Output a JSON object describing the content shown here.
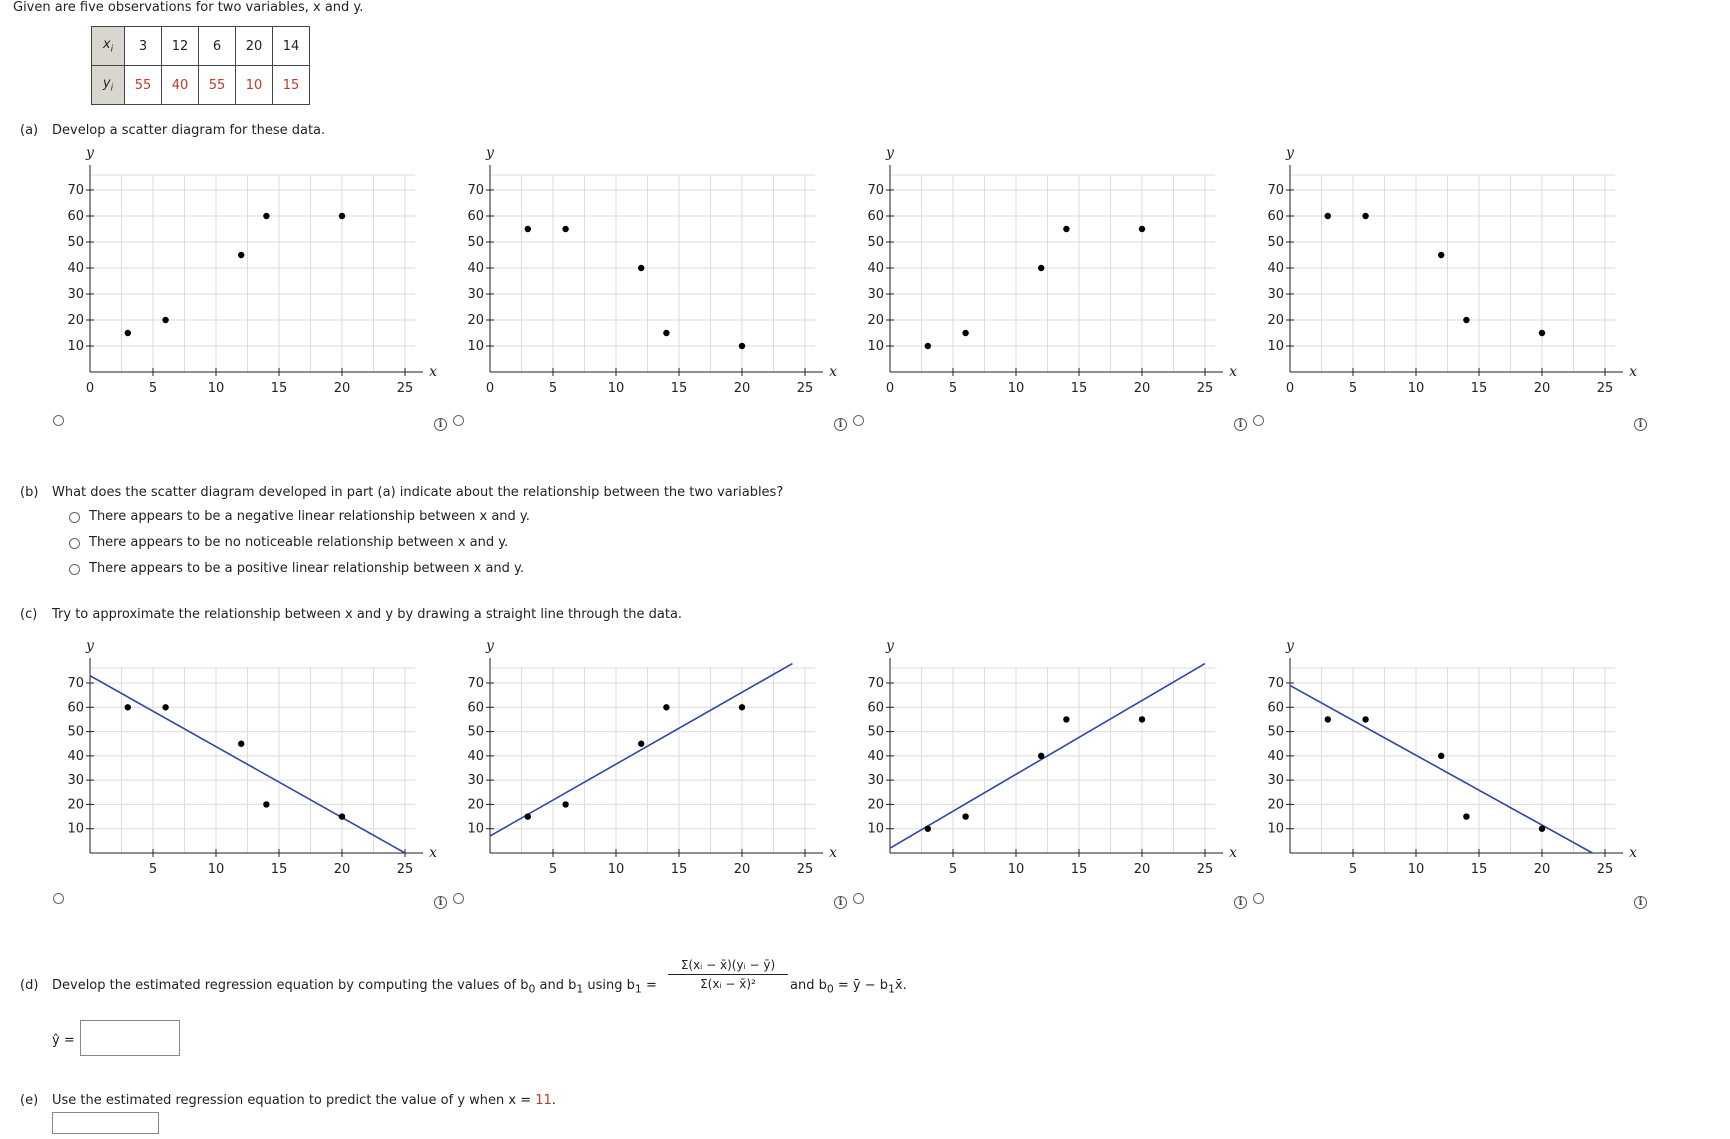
{
  "intro": {
    "text": "Given are five observations for two variables, x and y."
  },
  "table": {
    "x_label": "x",
    "y_label": "y",
    "x_values": [
      "3",
      "12",
      "6",
      "20",
      "14"
    ],
    "y_values": [
      "55",
      "40",
      "55",
      "10",
      "15"
    ]
  },
  "part_a": {
    "label": "(a)",
    "text": "Develop a scatter diagram for these data.",
    "charts": [
      {
        "type": "scatter",
        "points": [
          [
            3,
            15
          ],
          [
            6,
            20
          ],
          [
            12,
            45
          ],
          [
            14,
            60
          ],
          [
            20,
            60
          ]
        ]
      },
      {
        "type": "scatter",
        "points": [
          [
            3,
            55
          ],
          [
            6,
            55
          ],
          [
            12,
            40
          ],
          [
            14,
            15
          ],
          [
            20,
            10
          ]
        ]
      },
      {
        "type": "scatter",
        "points": [
          [
            3,
            10
          ],
          [
            6,
            15
          ],
          [
            12,
            40
          ],
          [
            14,
            55
          ],
          [
            20,
            55
          ]
        ]
      },
      {
        "type": "scatter",
        "points": [
          [
            3,
            60
          ],
          [
            6,
            60
          ],
          [
            12,
            45
          ],
          [
            14,
            20
          ],
          [
            20,
            15
          ]
        ]
      }
    ]
  },
  "part_b": {
    "label": "(b)",
    "question": "What does the scatter diagram developed in part (a) indicate about the relationship between the two variables?",
    "options": [
      "There appears to be a negative linear relationship between x and y.",
      "There appears to be no noticeable relationship between x and y.",
      "There appears to be a positive linear relationship between x and y."
    ]
  },
  "part_c": {
    "label": "(c)",
    "text": "Try to approximate the relationship between x and y by drawing a straight line through the data.",
    "charts": [
      {
        "type": "scatter",
        "points": [
          [
            3,
            60
          ],
          [
            6,
            60
          ],
          [
            12,
            45
          ],
          [
            14,
            20
          ],
          [
            20,
            15
          ]
        ],
        "line": [
          [
            0,
            73
          ],
          [
            25,
            0
          ]
        ]
      },
      {
        "type": "scatter",
        "points": [
          [
            3,
            15
          ],
          [
            6,
            20
          ],
          [
            12,
            45
          ],
          [
            14,
            60
          ],
          [
            20,
            60
          ]
        ],
        "line": [
          [
            0,
            7
          ],
          [
            24,
            78
          ]
        ]
      },
      {
        "type": "scatter",
        "points": [
          [
            3,
            10
          ],
          [
            6,
            15
          ],
          [
            12,
            40
          ],
          [
            14,
            55
          ],
          [
            20,
            55
          ]
        ],
        "line": [
          [
            0,
            2
          ],
          [
            25,
            78
          ]
        ]
      },
      {
        "type": "scatter",
        "points": [
          [
            3,
            55
          ],
          [
            6,
            55
          ],
          [
            12,
            40
          ],
          [
            14,
            15
          ],
          [
            20,
            10
          ]
        ],
        "line": [
          [
            0,
            69
          ],
          [
            24,
            0
          ]
        ]
      }
    ]
  },
  "chart_common": {
    "xlabel": "x",
    "ylabel": "y",
    "x_ticks": [
      "5",
      "10",
      "15",
      "20",
      "25"
    ],
    "y_ticks": [
      "10",
      "20",
      "30",
      "40",
      "50",
      "60",
      "70"
    ],
    "origin_label": "0",
    "xlim": [
      0,
      25
    ],
    "ylim": [
      0,
      70
    ],
    "grid": true,
    "point_color": "#000000",
    "line_color": "#2e47a8"
  },
  "part_d": {
    "label": "(d)",
    "text_before": "Develop the estimated regression equation by computing the values of b",
    "sub0": "0",
    "text_and": " and b",
    "sub1": "1",
    "text_using": " using b",
    "sub_b1": "1",
    "equals": " =",
    "numerator": "Σ(xᵢ − x̄)(yᵢ − ȳ)",
    "denominator": "Σ(xᵢ − x̄)²",
    "text_after": "and b",
    "sub_after": "0",
    "text_after2": " = ȳ − b",
    "sub_after2": "1",
    "text_after3": "x̄.",
    "yhat_label": "ŷ =",
    "yhat_value": ""
  },
  "part_e": {
    "label": "(e)",
    "text": "Use the estimated regression equation to predict the value of y when x =",
    "x_value": "11",
    "period": ".",
    "answer_value": ""
  }
}
